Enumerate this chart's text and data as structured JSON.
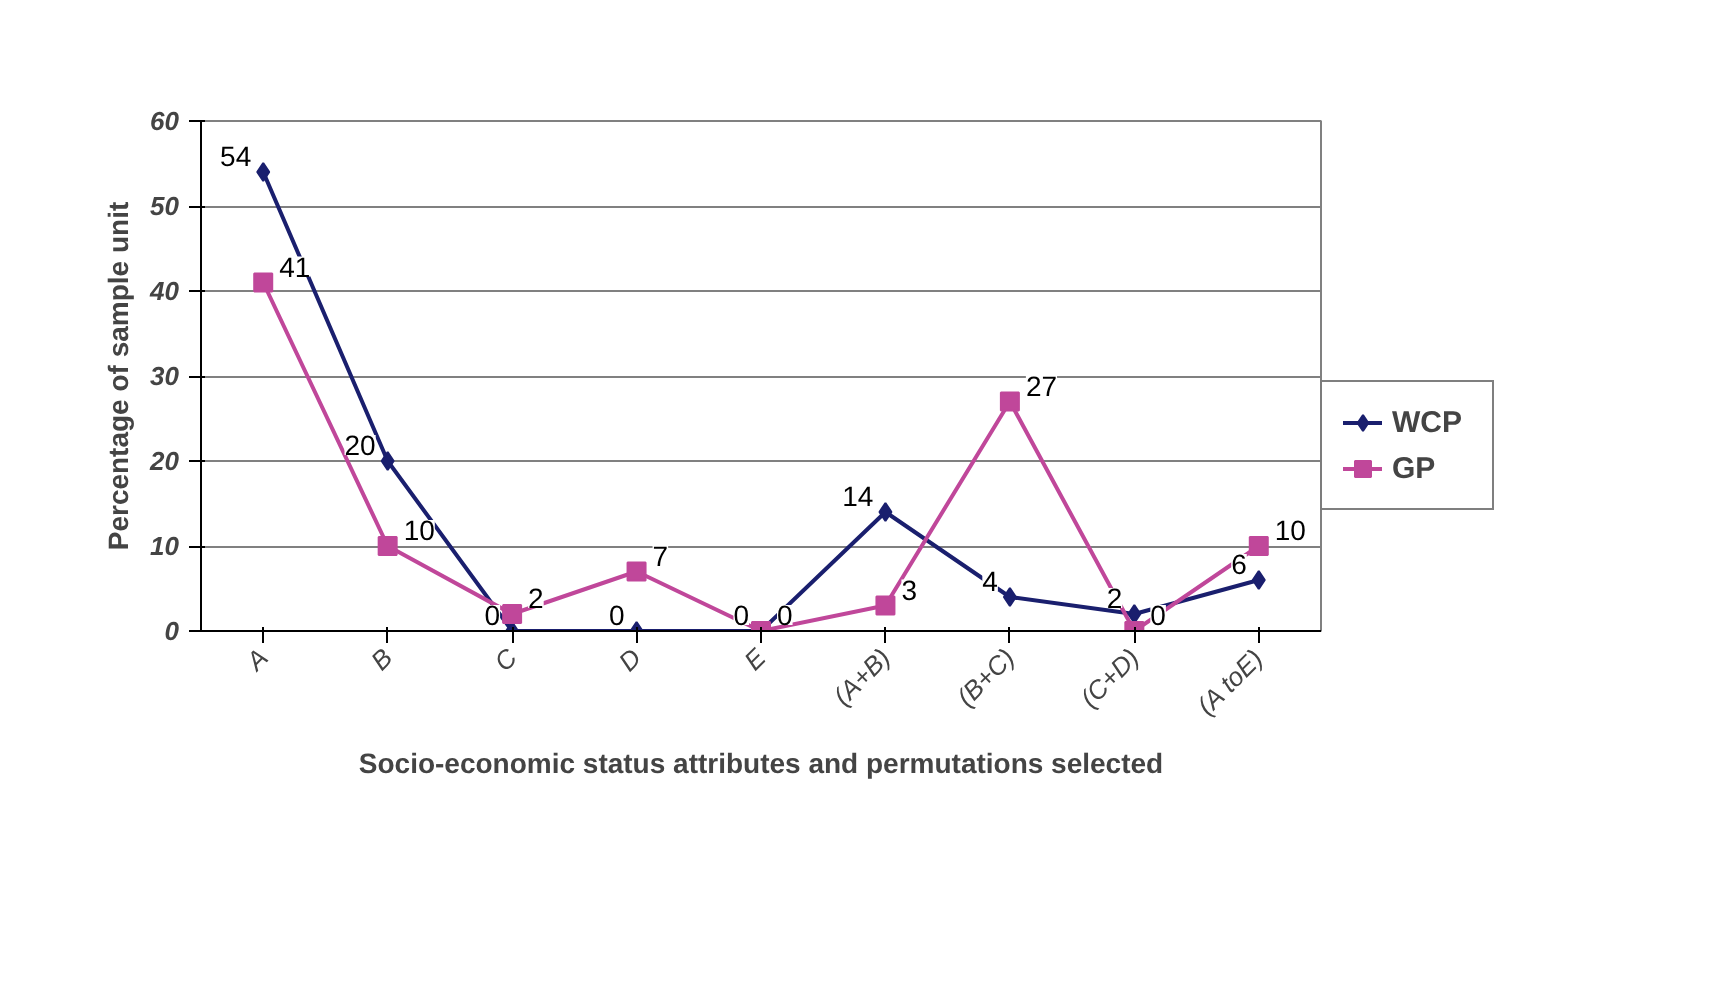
{
  "chart_data": {
    "type": "line",
    "xlabel": "Socio-economic status attributes and permutations selected",
    "ylabel": "Percentage of sample unit",
    "categories": [
      "A",
      "B",
      "C",
      "D",
      "E",
      "(A+B)",
      "(B+C)",
      "(C+D)",
      "(A toE)"
    ],
    "series": [
      {
        "name": "WCP",
        "color": "#1a1f6e",
        "marker": "diamond",
        "values": [
          54,
          20,
          0,
          0,
          0,
          14,
          4,
          2,
          6
        ]
      },
      {
        "name": "GP",
        "color": "#c0479a",
        "marker": "square",
        "values": [
          41,
          10,
          2,
          7,
          0,
          3,
          27,
          0,
          10
        ]
      }
    ],
    "ylim": [
      0,
      60
    ],
    "yticks": [
      0,
      10,
      20,
      30,
      40,
      50,
      60
    ],
    "grid": "y",
    "legend": "right",
    "data_labels": true
  }
}
